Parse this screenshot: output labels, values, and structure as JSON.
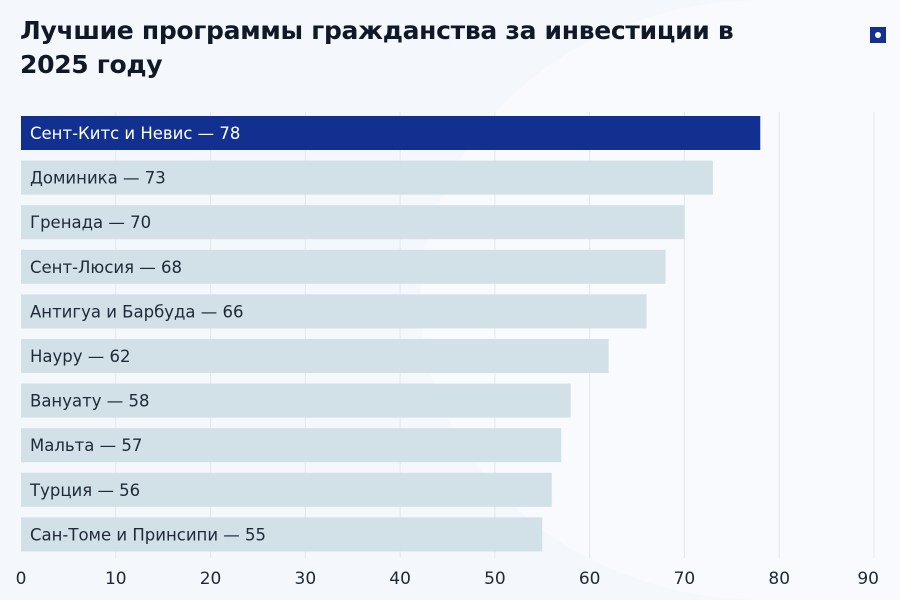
{
  "title": "Лучшие программы гражданства за инвестиции в 2025 году",
  "logo_icon": "square-dot-logo",
  "chart_data": {
    "type": "bar",
    "orientation": "horizontal",
    "title": "Лучшие программы гражданства за инвестиции в 2025 году",
    "categories": [
      "Сент-Китс и Невис",
      "Доминика",
      "Гренада",
      "Сент-Люсия",
      "Антигуа и Барбуда",
      "Науру",
      "Вануату",
      "Мальта",
      "Турция",
      "Сан-Томе и Принсипи"
    ],
    "values": [
      78,
      73,
      70,
      68,
      66,
      62,
      58,
      57,
      56,
      55
    ],
    "labels": [
      "Сент-Китс и Невис — 78",
      "Доминика — 73",
      "Гренада — 70",
      "Сент-Люсия — 68",
      "Антигуа и Барбуда — 66",
      "Науру — 62",
      "Вануату — 58",
      "Мальта — 57",
      "Турция — 56",
      "Сан-Томе и Принсипи — 55"
    ],
    "xlim": [
      0,
      90
    ],
    "xticks": [
      "0",
      "10",
      "20",
      "30",
      "40",
      "50",
      "60",
      "70",
      "80",
      "90"
    ],
    "grid": true,
    "colors": {
      "highlight": "#12308f",
      "bar": "#d2e0e8",
      "highlight_text": "#ffffff",
      "text": "#1f2937"
    }
  }
}
